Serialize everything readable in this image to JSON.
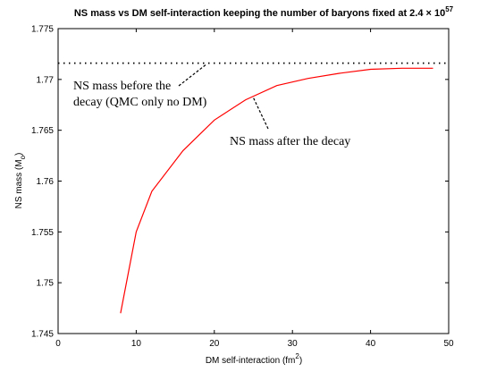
{
  "chart_data": {
    "type": "line",
    "title": "NS mass vs DM self-interaction keeping the number of baryons fixed at 2.4 × 10",
    "title_exponent": "57",
    "xlabel": "DM self-interaction (fm",
    "xlabel_exponent": "2",
    "xlabel_close": ")",
    "ylabel": "NS mass (M",
    "ylabel_subscript": "o",
    "ylabel_close": ")",
    "xlim": [
      0,
      50
    ],
    "ylim": [
      1.745,
      1.775
    ],
    "x_ticks": [
      0,
      10,
      20,
      30,
      40,
      50
    ],
    "x_tick_labels": [
      "0",
      "10",
      "20",
      "30",
      "40",
      "50"
    ],
    "y_ticks": [
      1.745,
      1.75,
      1.755,
      1.76,
      1.765,
      1.77,
      1.775
    ],
    "y_tick_labels": [
      "1.745",
      "1.75",
      "1.755",
      "1.76",
      "1.765",
      "1.77",
      "1.775"
    ],
    "grid": false,
    "legend": "none",
    "series": [
      {
        "style": "solid",
        "color": "#ff0000",
        "x": [
          8,
          10,
          12,
          16,
          20,
          24,
          28,
          32,
          36,
          40,
          44,
          48
        ],
        "y": [
          1.747,
          1.755,
          1.759,
          1.763,
          1.766,
          1.768,
          1.7694,
          1.7701,
          1.7706,
          1.771,
          1.7711,
          1.7711
        ]
      },
      {
        "style": "dotted",
        "color": "#000000",
        "x": [
          0,
          50
        ],
        "y": [
          1.7716,
          1.7716
        ]
      }
    ],
    "annotations": [
      {
        "lines": [
          "NS mass before the",
          "decay (QMC only no DM)"
        ],
        "arrow_to": [
          19,
          1.7715
        ]
      },
      {
        "lines": [
          "NS mass after the decay"
        ],
        "arrow_to": [
          25,
          1.7682
        ]
      }
    ]
  }
}
